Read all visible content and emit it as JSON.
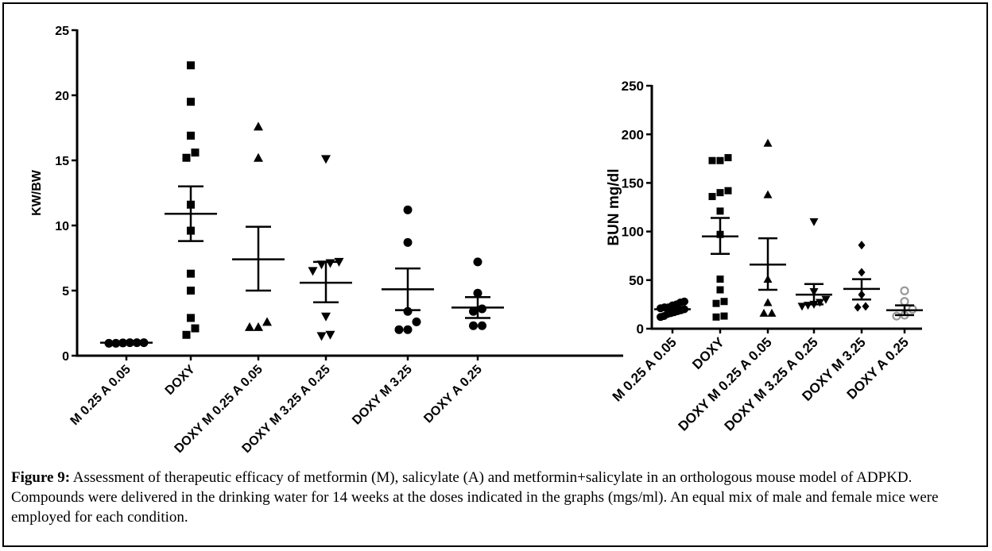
{
  "chart_data": [
    {
      "type": "scatter",
      "ylabel": "KW/BW",
      "ylim": [
        0,
        25
      ],
      "yticks": [
        0,
        5,
        10,
        15,
        20,
        25
      ],
      "categories": [
        "M 0.25 A 0.05",
        "DOXY",
        "DOXY M 0.25 A 0.05",
        "DOXY M 3.25 A 0.25",
        "DOXY M 3.25",
        "DOXY A 0.25"
      ],
      "series": [
        {
          "marker": "circle",
          "points": [
            1.0,
            0.95,
            1.0,
            0.95,
            1.0,
            0.98
          ],
          "mean": 1.0,
          "sem": [
            1.0,
            1.0
          ]
        },
        {
          "marker": "square",
          "points": [
            22.3,
            19.5,
            16.9,
            15.6,
            15.2,
            11.6,
            9.6,
            6.3,
            5.0,
            2.9,
            2.1,
            1.6
          ],
          "mean": 10.9,
          "sem": [
            8.8,
            13.0
          ]
        },
        {
          "marker": "triangle-up",
          "points": [
            17.6,
            15.2,
            2.6,
            2.2,
            2.2
          ],
          "mean": 7.4,
          "sem": [
            5.0,
            9.9
          ]
        },
        {
          "marker": "triangle-down",
          "points": [
            15.1,
            7.2,
            7.1,
            7.0,
            6.5,
            3.0,
            1.5,
            1.6
          ],
          "mean": 5.6,
          "sem": [
            4.1,
            7.2
          ]
        },
        {
          "marker": "circle",
          "points": [
            11.2,
            8.7,
            3.4,
            2.6,
            2.0,
            2.0
          ],
          "mean": 5.1,
          "sem": [
            3.5,
            6.7
          ]
        },
        {
          "marker": "circle",
          "points": [
            7.2,
            4.8,
            3.6,
            3.4,
            2.3,
            2.3
          ],
          "mean": 3.7,
          "sem": [
            2.9,
            4.5
          ]
        }
      ]
    },
    {
      "type": "scatter",
      "ylabel": "BUN mg/dl",
      "ylim": [
        0,
        250
      ],
      "yticks": [
        0,
        50,
        100,
        150,
        200,
        250
      ],
      "categories": [
        "M 0.25 A 0.05",
        "DOXY",
        "DOXY M 0.25 A 0.05",
        "DOXY M 3.25 A 0.25",
        "DOXY M 3.25",
        "DOXY A 0.25"
      ],
      "series": [
        {
          "marker": "circle",
          "points": [
            28,
            27,
            25,
            24,
            22,
            22,
            21,
            20,
            19,
            18,
            17,
            16,
            15,
            13,
            12
          ],
          "mean": 20,
          "sem": [
            19,
            22
          ]
        },
        {
          "marker": "square",
          "points": [
            176,
            173,
            173,
            142,
            140,
            136,
            121,
            97,
            51,
            40,
            28,
            26,
            13,
            12
          ],
          "mean": 95,
          "sem": [
            77,
            114
          ]
        },
        {
          "marker": "triangle-up",
          "points": [
            191,
            138,
            51,
            27,
            16,
            16
          ],
          "mean": 66,
          "sem": [
            40,
            93
          ]
        },
        {
          "marker": "triangle-down",
          "points": [
            110,
            38,
            30,
            27,
            25,
            24,
            23
          ],
          "mean": 35,
          "sem": [
            25,
            46
          ]
        },
        {
          "marker": "diamond",
          "points": [
            86,
            58,
            35,
            23,
            22
          ],
          "mean": 41,
          "sem": [
            30,
            51
          ]
        },
        {
          "marker": "open-circle",
          "points": [
            39,
            28,
            20,
            14,
            13
          ],
          "mean": 19,
          "sem": [
            14,
            24
          ]
        }
      ]
    }
  ],
  "caption": {
    "label": "Figure 9:",
    "text": " Assessment of therapeutic efficacy of metformin (M), salicylate (A) and metformin+salicylate in an orthologous mouse model of ADPKD. Compounds were delivered in the drinking water for 14 weeks at the doses indicated in the graphs (mgs/ml). An equal mix of male and female mice were employed for each condition."
  },
  "colors": {
    "marker": "#000000",
    "open_marker": "#9a9a9a",
    "axis": "#000000"
  }
}
